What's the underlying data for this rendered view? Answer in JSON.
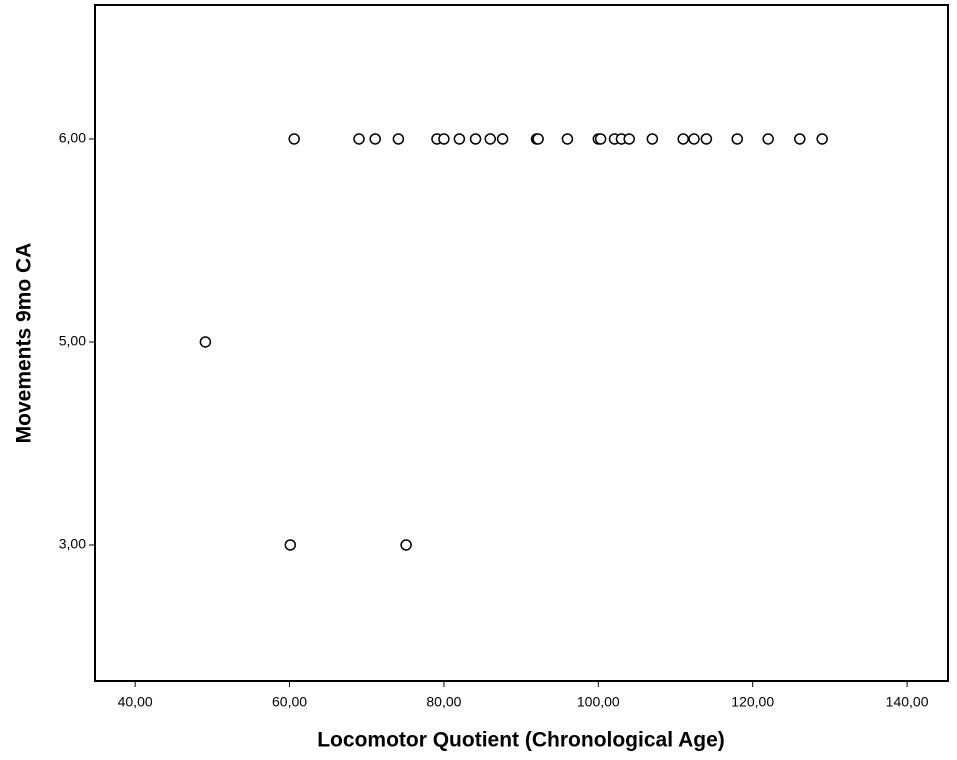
{
  "chart_data": {
    "type": "scatter",
    "x_label": "Locomotor Quotient (Chronological Age)",
    "y_label": "Movements 9mo CA",
    "xlim": [
      34.8,
      145.3
    ],
    "xticks": [
      {
        "value": 40,
        "label": "40,00"
      },
      {
        "value": 60,
        "label": "60,00"
      },
      {
        "value": 80,
        "label": "80,00"
      },
      {
        "value": 100,
        "label": "100,00"
      },
      {
        "value": 120,
        "label": "120,00"
      },
      {
        "value": 140,
        "label": "140,00"
      }
    ],
    "ylim": [
      2.33,
      6.66
    ],
    "yticks": [
      {
        "value": 3,
        "label": "3,00"
      },
      {
        "value": 5,
        "label": "5,00"
      },
      {
        "value": 6,
        "label": "6,00"
      }
    ],
    "color": "#000000",
    "x": [
      60.6,
      69.0,
      71.1,
      74.1,
      79.1,
      80.0,
      82.0,
      84.1,
      86.0,
      87.6,
      92.0,
      92.2,
      96.0,
      100.0,
      100.3,
      102.1,
      103.0,
      104.0,
      107.0,
      111.0,
      112.4,
      114.0,
      118.0,
      122.0,
      126.1,
      129.0,
      49.1,
      60.1,
      75.1
    ],
    "y": [
      6,
      6,
      6,
      6,
      6,
      6,
      6,
      6,
      6,
      6,
      6,
      6,
      6,
      6,
      6,
      6,
      6,
      6,
      6,
      6,
      6,
      6,
      6,
      6,
      6,
      6,
      5,
      3,
      3
    ]
  }
}
